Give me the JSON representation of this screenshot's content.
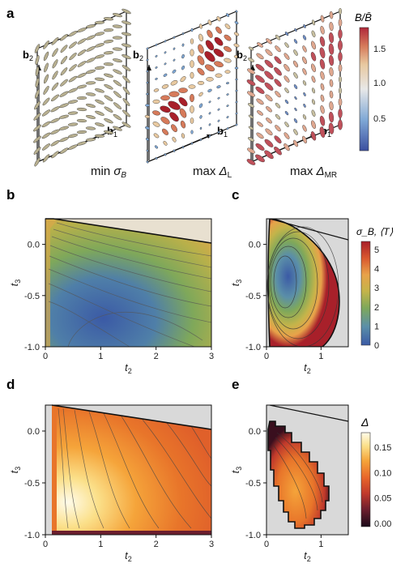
{
  "colors": {
    "sigma_cmap": [
      "#3b5aa6",
      "#5b8fa8",
      "#7fa85a",
      "#c4b44a",
      "#e8a24a",
      "#d9572e",
      "#a8202a"
    ],
    "delta_cmap": [
      "#1a0a18",
      "#6b1e2e",
      "#c0392b",
      "#e8652a",
      "#f5a43a",
      "#fbe08a",
      "#fffbea"
    ],
    "b_cmap": [
      "#3b4fa0",
      "#7fa8d6",
      "#e8e8e8",
      "#e8c9a0",
      "#d67a5a",
      "#b0283a"
    ],
    "excluded": "#d9d9d9"
  },
  "labels": {
    "panels": [
      "a",
      "b",
      "c",
      "d",
      "e"
    ],
    "vectors": {
      "b1": "b",
      "b1_sub": "1",
      "b2": "b",
      "b2_sub": "2"
    },
    "captions": [
      {
        "prefix": "min ",
        "sym": "σ",
        "sub": "B"
      },
      {
        "prefix": "max ",
        "sym": "Δ",
        "sub": "L"
      },
      {
        "prefix": "max ",
        "sym": "Δ",
        "sub": "MR"
      }
    ],
    "cbar_top": {
      "title": "B/B̄",
      "ticks": [
        "1.5",
        "1.0",
        "0.5"
      ]
    },
    "cbar_mid": {
      "title": "σ_B, ⟨T⟩",
      "ticks": [
        "5",
        "4",
        "3",
        "2",
        "1",
        "0"
      ]
    },
    "cbar_bot": {
      "title": "Δ",
      "ticks": [
        "0.15",
        "0.10",
        "0.05",
        "0.00"
      ]
    },
    "xlabel": "t",
    "xlabel_sub": "2",
    "ylabel": "t",
    "ylabel_sub": "3"
  },
  "chart_data": [
    {
      "id": "b",
      "type": "heatmap",
      "quantity": "σ_B",
      "xlim": [
        0,
        3
      ],
      "ylim": [
        -1.0,
        0.25
      ],
      "xticks": [
        "0",
        "1",
        "2",
        "3"
      ],
      "yticks": [
        "0.0",
        "-0.5",
        "-1.0"
      ]
    },
    {
      "id": "c",
      "type": "heatmap",
      "quantity": "⟨T⟩",
      "xlim": [
        0,
        1.5
      ],
      "ylim": [
        -1.0,
        0.25
      ],
      "xticks": [
        "0",
        "1"
      ],
      "yticks": [
        "0.0",
        "-0.5",
        "-1.0"
      ]
    },
    {
      "id": "d",
      "type": "heatmap",
      "quantity": "Δ_L",
      "xlim": [
        0,
        3
      ],
      "ylim": [
        -1.0,
        0.25
      ],
      "xticks": [
        "0",
        "1",
        "2",
        "3"
      ],
      "yticks": [
        "0.0",
        "-0.5",
        "-1.0"
      ]
    },
    {
      "id": "e",
      "type": "heatmap",
      "quantity": "Δ_MR",
      "xlim": [
        0,
        1.5
      ],
      "ylim": [
        -1.0,
        0.25
      ],
      "xticks": [
        "0",
        "1"
      ],
      "yticks": [
        "0.0",
        "-0.5",
        "-1.0"
      ]
    }
  ]
}
